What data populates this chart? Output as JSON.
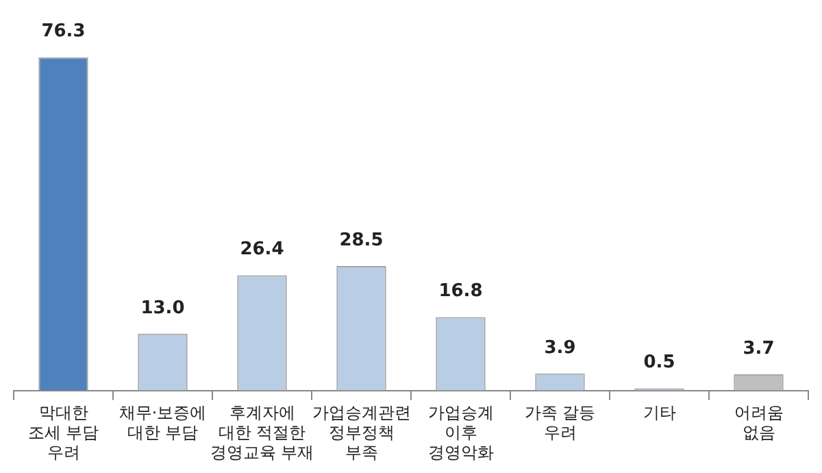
{
  "chart_data": {
    "type": "bar",
    "categories": [
      "막대한\n조세 부담\n우려",
      "채무·보증에\n대한 부담",
      "후계자에\n대한 적절한\n경영교육 부재",
      "가업승계관련\n정부정책\n부족",
      "가업승계\n이후\n경영악화",
      "가족 갈등\n우려",
      "기타",
      "어려움\n없음"
    ],
    "values": [
      76.3,
      13.0,
      26.4,
      28.5,
      16.8,
      3.9,
      0.5,
      3.7
    ],
    "value_labels": [
      "76.3",
      "13.0",
      "26.4",
      "28.5",
      "16.8",
      "3.9",
      "0.5",
      "3.7"
    ],
    "colors": [
      "#4f81bd",
      "#b9cde5",
      "#b9cde5",
      "#b9cde5",
      "#b9cde5",
      "#b9cde5",
      "#b9cde5",
      "#bfbfbf"
    ],
    "grid": false,
    "legend": false
  }
}
